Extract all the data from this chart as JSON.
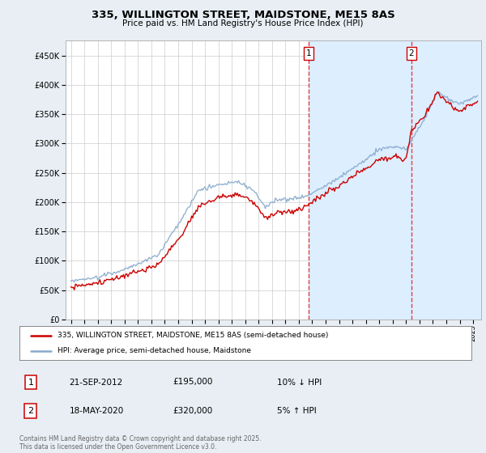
{
  "title": "335, WILLINGTON STREET, MAIDSTONE, ME15 8AS",
  "subtitle": "Price paid vs. HM Land Registry's House Price Index (HPI)",
  "ylim": [
    0,
    475000
  ],
  "yticks": [
    0,
    50000,
    100000,
    150000,
    200000,
    250000,
    300000,
    350000,
    400000,
    450000
  ],
  "xlim_start": 1994.6,
  "xlim_end": 2025.6,
  "legend_items": [
    "335, WILLINGTON STREET, MAIDSTONE, ME15 8AS (semi-detached house)",
    "HPI: Average price, semi-detached house, Maidstone"
  ],
  "legend_colors": [
    "#cc0000",
    "#88aacc"
  ],
  "vline1_x": 2012.72,
  "vline2_x": 2020.38,
  "sale_price1": 195000,
  "sale_price2": 320000,
  "footer": "Contains HM Land Registry data © Crown copyright and database right 2025.\nThis data is licensed under the Open Government Licence v3.0.",
  "sale_info": [
    {
      "num": "1",
      "date": "21-SEP-2012",
      "price": "£195,000",
      "pct": "10% ↓ HPI"
    },
    {
      "num": "2",
      "date": "18-MAY-2020",
      "price": "£320,000",
      "pct": "5% ↑ HPI"
    }
  ],
  "background_color": "#e8eef4",
  "plot_bg": "#ffffff",
  "grid_color": "#cccccc",
  "shade_color": "#ddeeff"
}
